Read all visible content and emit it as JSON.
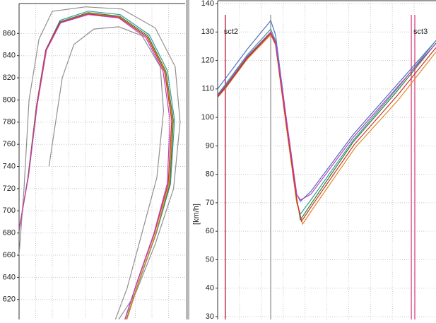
{
  "chart_data": [
    {
      "type": "line",
      "xlim": [
        0,
        100
      ],
      "ylim": [
        602,
        887
      ],
      "yticks": [
        620,
        640,
        660,
        680,
        700,
        720,
        740,
        760,
        780,
        800,
        820,
        840,
        860
      ],
      "grid": true,
      "series": [
        {
          "color": "#909090",
          "x": [
            0,
            3,
            6,
            12,
            20,
            40,
            62,
            82,
            94,
            97,
            93,
            82,
            70,
            60
          ],
          "values": [
            660,
            720,
            800,
            855,
            880,
            884,
            882,
            865,
            830,
            780,
            720,
            670,
            625,
            602
          ]
        },
        {
          "color": "#909090",
          "x": [
            18,
            22,
            26,
            33,
            45,
            60,
            74,
            85,
            87,
            83,
            74,
            65,
            58
          ],
          "values": [
            740,
            780,
            820,
            850,
            864,
            866,
            858,
            830,
            790,
            730,
            680,
            630,
            602
          ]
        },
        {
          "color": "#3a9a9a",
          "x": [
            0,
            5.5,
            10.6,
            16.2,
            24.7,
            41.7,
            60.9,
            78.4,
            89.3,
            93.6,
            91.2,
            82.6,
            72,
            64.8
          ],
          "values": [
            682.8,
            730.7,
            794.5,
            845.5,
            871.8,
            880.2,
            877,
            858.8,
            826.4,
            781.7,
            724.3,
            679.6,
            634.9,
            601.8
          ]
        },
        {
          "color": "#2e7d32",
          "x": [
            0,
            5.3,
            10.4,
            16,
            24.6,
            41.7,
            60.6,
            77.6,
            88.4,
            92.9,
            90.8,
            82.4,
            71.8,
            64.6
          ],
          "values": [
            682,
            730,
            794,
            845,
            870.5,
            878.8,
            875.6,
            857.8,
            826,
            781.7,
            724.3,
            679.6,
            634.9,
            601.8
          ]
        },
        {
          "color": "#e08a1e",
          "x": [
            0,
            5.6,
            10.7,
            16.3,
            24.8,
            41.5,
            60.3,
            77.2,
            88,
            92.4,
            90.4,
            82.3,
            71.9,
            64.9
          ],
          "values": [
            683,
            731,
            795,
            845,
            870,
            878,
            875,
            857,
            826,
            781.7,
            724.3,
            679.6,
            634.9,
            601.8
          ]
        },
        {
          "color": "#d03030",
          "x": [
            0,
            5.5,
            10.6,
            16.1,
            24.6,
            41.4,
            60.2,
            77,
            87.6,
            91.9,
            89.8,
            81.5,
            71,
            63.8
          ],
          "values": [
            682.5,
            730.5,
            794.3,
            845,
            869.8,
            877.6,
            874.6,
            856.8,
            825.5,
            781.7,
            724.3,
            679.6,
            634.9,
            601.8
          ]
        },
        {
          "color": "#c040c0",
          "x": [
            0,
            5.7,
            10.9,
            16.5,
            25,
            41.6,
            60,
            76.4,
            86.7,
            90.9,
            89.2,
            81.2,
            70.8,
            63.6
          ],
          "values": [
            683.5,
            731.5,
            795,
            845,
            869.5,
            877,
            874,
            856,
            826,
            781.7,
            724.3,
            679.6,
            634.9,
            601.8
          ]
        }
      ]
    },
    {
      "type": "line",
      "xlim": [
        0,
        100
      ],
      "ylim": [
        29,
        141
      ],
      "ylabel": "[km/h]",
      "yticks": [
        30,
        40,
        50,
        60,
        70,
        80,
        90,
        100,
        110,
        120,
        130,
        140
      ],
      "grid": true,
      "markers": [
        {
          "x": 3.5,
          "color": "#c03050",
          "label": "sct2"
        },
        {
          "x": 24.3,
          "color": "#a0a0a0"
        },
        {
          "x": 88.7,
          "color": "#e06090"
        },
        {
          "x": 90.3,
          "color": "#e06090",
          "label": "sct3"
        }
      ],
      "series": [
        {
          "color": "#5070c0",
          "x": [
            0,
            3.9,
            13.6,
            24.3,
            26.5,
            31.4,
            36.2,
            37.9,
            42.7,
            62.1,
            81.6,
            100
          ],
          "values": [
            110,
            114,
            124,
            134,
            129,
            100,
            73,
            70.5,
            74,
            94,
            111,
            127
          ]
        },
        {
          "color": "#3a9a9a",
          "x": [
            0,
            3.9,
            13.6,
            24.3,
            26.5,
            31.4,
            36.2,
            37.9,
            42.7,
            62.1,
            81.6,
            100
          ],
          "values": [
            108,
            112,
            122,
            131,
            127,
            99,
            70,
            66,
            71,
            92,
            109.5,
            127
          ]
        },
        {
          "color": "#2e7d32",
          "x": [
            0,
            3.9,
            13.6,
            24.3,
            26.5,
            31.4,
            36.2,
            37.9,
            42.7,
            62.1,
            81.6,
            100
          ],
          "values": [
            107.5,
            111.2,
            121.1,
            129.8,
            126.1,
            98.8,
            71.5,
            64,
            69.5,
            91.4,
            108.7,
            126.1
          ]
        },
        {
          "color": "#e08a1e",
          "x": [
            0,
            3.9,
            13.6,
            24.3,
            26.5,
            31.4,
            36.2,
            38.9,
            43.7,
            63.1,
            82.6,
            100
          ],
          "values": [
            107,
            110.5,
            120.5,
            129,
            125.5,
            97,
            70,
            62.5,
            68,
            89.5,
            106,
            123
          ]
        },
        {
          "color": "#d03030",
          "x": [
            0,
            3.9,
            13.6,
            24.3,
            26.5,
            31.4,
            36.2,
            38.4,
            43.2,
            62.6,
            82.1,
            100
          ],
          "values": [
            107.2,
            110.8,
            120.8,
            129.5,
            125.8,
            98,
            71,
            63.5,
            69,
            90.5,
            107.5,
            124.5
          ]
        },
        {
          "color": "#c040c0",
          "x": [
            0,
            3.9,
            13.6,
            24.3,
            26.5,
            31.4,
            36.2,
            37.9,
            42.7,
            62.1,
            81.6,
            100
          ],
          "values": [
            107.8,
            111.5,
            121.5,
            130,
            126.5,
            100,
            73,
            71,
            73,
            93,
            110,
            126
          ]
        }
      ]
    }
  ]
}
